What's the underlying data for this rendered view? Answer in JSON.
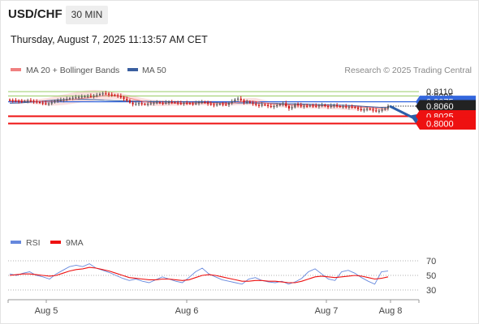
{
  "header": {
    "symbol": "USD/CHF",
    "timeframe": "30 MIN",
    "datetime": "Thursday, August 7, 2025 11:13:57 AM CET",
    "legend_main_1": "MA 20 + Bollinger Bands",
    "legend_main_2": "MA 50",
    "credit": "Research © 2025 Trading Central",
    "legend_rsi_1": "RSI",
    "legend_rsi_2": "9MA"
  },
  "colors": {
    "candle_up": "#555555",
    "candle_down": "#cc1111",
    "bollinger_fill": "#f9d6d6",
    "ma20": "#f08080",
    "ma50": "#3a5fa0",
    "pivot_line": "#3366dd",
    "support_line": "#ee1111",
    "resistance_line": "#99cc66",
    "arrow": "#2c5ea8",
    "rsi": "#6688dd",
    "rsi_ma": "#ee1111"
  },
  "chart_data": [
    {
      "type": "candlestick",
      "title": "USD/CHF 30 MIN",
      "x_ticks": [
        "Aug 5",
        "Aug 6",
        "Aug 7",
        "Aug 8"
      ],
      "ylim": [
        0.799,
        0.8122
      ],
      "levels": [
        {
          "label": "0.8110",
          "value": 0.811,
          "kind": "resistance"
        },
        {
          "label": "0.8095",
          "value": 0.8095,
          "kind": "resistance"
        },
        {
          "label": "0.8075",
          "value": 0.8075,
          "kind": "pivot"
        },
        {
          "label": "0.8060",
          "value": 0.806,
          "kind": "last"
        },
        {
          "label": "0.8025",
          "value": 0.8025,
          "kind": "support"
        },
        {
          "label": "0.8000",
          "value": 0.8,
          "kind": "support"
        }
      ],
      "close_path": [
        0.808,
        0.8079,
        0.8078,
        0.8077,
        0.8076,
        0.8077,
        0.8079,
        0.8078,
        0.8076,
        0.8074,
        0.8072,
        0.807,
        0.8068,
        0.8069,
        0.8073,
        0.8078,
        0.808,
        0.8081,
        0.8083,
        0.8085,
        0.8087,
        0.8089,
        0.809,
        0.8092,
        0.8093,
        0.8094,
        0.8095,
        0.8094,
        0.8096,
        0.8098,
        0.8102,
        0.8104,
        0.8103,
        0.81,
        0.8098,
        0.8097,
        0.8095,
        0.809,
        0.8085,
        0.808,
        0.8072,
        0.8066,
        0.8068,
        0.807,
        0.8067,
        0.8066,
        0.8068,
        0.807,
        0.8072,
        0.8073,
        0.8071,
        0.807,
        0.8072,
        0.8074,
        0.8073,
        0.8072,
        0.807,
        0.8069,
        0.8071,
        0.807,
        0.8069,
        0.8068,
        0.807,
        0.8073,
        0.8074,
        0.8072,
        0.8068,
        0.8066,
        0.8064,
        0.8066,
        0.8068,
        0.8066,
        0.8065,
        0.807,
        0.8076,
        0.8083,
        0.8086,
        0.808,
        0.8073,
        0.8075,
        0.8072,
        0.8068,
        0.8064,
        0.8062,
        0.8066,
        0.8064,
        0.806,
        0.8058,
        0.806,
        0.8063,
        0.8066,
        0.807,
        0.806,
        0.8052,
        0.8056,
        0.8066,
        0.8063,
        0.8059,
        0.8061,
        0.806,
        0.8062,
        0.8061,
        0.8059,
        0.8062,
        0.8064,
        0.806,
        0.8057,
        0.8061,
        0.8063,
        0.806,
        0.8058,
        0.8059,
        0.8056,
        0.8058,
        0.8057,
        0.8055,
        0.805,
        0.8046,
        0.8048,
        0.8051,
        0.8049,
        0.8045,
        0.8043,
        0.8044,
        0.8048,
        0.8052,
        0.806
      ],
      "ma20_path": [
        0.8078,
        0.8078,
        0.8077,
        0.8076,
        0.8076,
        0.8077,
        0.808,
        0.8084,
        0.8088,
        0.8092,
        0.8096,
        0.8097,
        0.8093,
        0.8085,
        0.8077,
        0.8072,
        0.8071,
        0.8071,
        0.807,
        0.807,
        0.8071,
        0.8071,
        0.807,
        0.8069,
        0.8072,
        0.8078,
        0.8076,
        0.807,
        0.8067,
        0.8065,
        0.8064,
        0.8063,
        0.8062,
        0.8061,
        0.806,
        0.8059,
        0.8058,
        0.8057,
        0.8055,
        0.8052,
        0.805
      ],
      "ma50_path": [
        0.807,
        0.8071,
        0.8073,
        0.8076,
        0.8079,
        0.8081,
        0.8082,
        0.8083,
        0.8083,
        0.8082,
        0.808,
        0.8079,
        0.8078,
        0.8077,
        0.8077,
        0.8076,
        0.8076,
        0.8075,
        0.8075,
        0.8074,
        0.8074,
        0.8073,
        0.8072,
        0.8071,
        0.8071,
        0.8071,
        0.8071,
        0.807,
        0.8069,
        0.8068,
        0.8068,
        0.8067,
        0.8066,
        0.8065,
        0.8064,
        0.8063,
        0.8062,
        0.806,
        0.8058,
        0.8056,
        0.8055
      ],
      "bb_upper": [
        0.8084,
        0.8083,
        0.8083,
        0.8084,
        0.8088,
        0.8096,
        0.8102,
        0.8108,
        0.8114,
        0.8116,
        0.8114,
        0.8108,
        0.8103,
        0.8096,
        0.8088,
        0.8082,
        0.8079,
        0.8079,
        0.8078,
        0.8077,
        0.8078,
        0.8079,
        0.8078,
        0.8076,
        0.808,
        0.8088,
        0.8088,
        0.808,
        0.8073,
        0.807,
        0.807,
        0.8069,
        0.8068,
        0.8066,
        0.8065,
        0.8064,
        0.8063,
        0.8062,
        0.806,
        0.8058,
        0.806
      ],
      "bb_lower": [
        0.8072,
        0.8072,
        0.8069,
        0.8066,
        0.8062,
        0.8062,
        0.8065,
        0.807,
        0.8075,
        0.8079,
        0.8082,
        0.8084,
        0.8081,
        0.8073,
        0.8065,
        0.806,
        0.806,
        0.8061,
        0.8062,
        0.8062,
        0.8063,
        0.8063,
        0.8062,
        0.8061,
        0.8063,
        0.8064,
        0.8062,
        0.8059,
        0.8057,
        0.8055,
        0.8053,
        0.8052,
        0.8052,
        0.8051,
        0.805,
        0.8048,
        0.8046,
        0.8045,
        0.8044,
        0.8043,
        0.8041
      ],
      "forecast_arrow": {
        "from": 0.806,
        "to": 0.8
      }
    },
    {
      "type": "line",
      "title": "RSI",
      "ylim": [
        25,
        75
      ],
      "y_ticks": [
        70,
        50,
        30
      ],
      "series": [
        {
          "name": "RSI",
          "values": [
            52,
            50,
            53,
            55,
            50,
            48,
            45,
            52,
            57,
            62,
            64,
            62,
            66,
            60,
            57,
            54,
            50,
            46,
            43,
            45,
            42,
            40,
            44,
            48,
            45,
            42,
            40,
            47,
            55,
            60,
            52,
            48,
            44,
            42,
            40,
            38,
            45,
            47,
            43,
            41,
            40,
            42,
            38,
            41,
            46,
            55,
            59,
            52,
            45,
            43,
            55,
            57,
            53,
            47,
            42,
            38,
            55,
            56
          ]
        },
        {
          "name": "9MA",
          "values": [
            50,
            51,
            52,
            52,
            51,
            50,
            49,
            50,
            53,
            56,
            58,
            59,
            61,
            60,
            58,
            56,
            53,
            50,
            47,
            46,
            45,
            44,
            44,
            45,
            45,
            44,
            43,
            44,
            47,
            50,
            51,
            50,
            48,
            46,
            44,
            42,
            42,
            43,
            43,
            42,
            42,
            41,
            40,
            40,
            42,
            45,
            48,
            49,
            48,
            47,
            48,
            49,
            50,
            49,
            47,
            45,
            46,
            48
          ]
        }
      ]
    }
  ]
}
